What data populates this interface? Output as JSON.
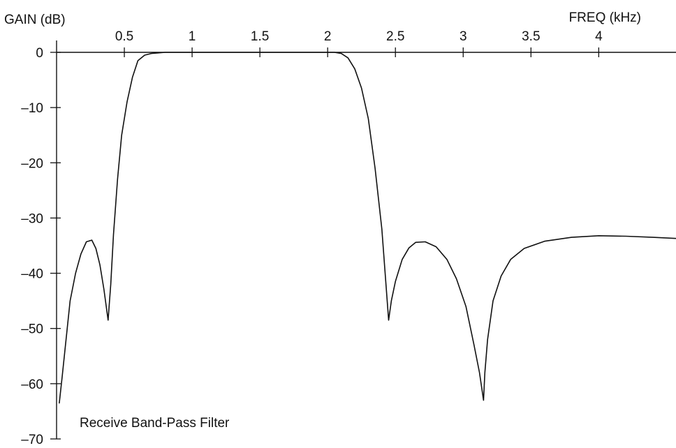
{
  "chart_data": {
    "type": "line",
    "caption": "Receive Band-Pass Filter",
    "xlabel": "FREQ (kHz)",
    "ylabel": "GAIN (dB)",
    "xlim": [
      0,
      4.57
    ],
    "ylim": [
      -70,
      0
    ],
    "x_ticks": [
      {
        "value": 0.5,
        "label": "0.5"
      },
      {
        "value": 1,
        "label": "1"
      },
      {
        "value": 1.5,
        "label": "1.5"
      },
      {
        "value": 2,
        "label": "2"
      },
      {
        "value": 2.5,
        "label": "2.5"
      },
      {
        "value": 3,
        "label": "3"
      },
      {
        "value": 3.5,
        "label": "3.5"
      },
      {
        "value": 4,
        "label": "4"
      }
    ],
    "y_ticks": [
      {
        "value": 0,
        "label": "0"
      },
      {
        "value": -10,
        "label": "–10"
      },
      {
        "value": -20,
        "label": "–20"
      },
      {
        "value": -30,
        "label": "–30"
      },
      {
        "value": -40,
        "label": "–40"
      },
      {
        "value": -50,
        "label": "–50"
      },
      {
        "value": -60,
        "label": "–60"
      },
      {
        "value": -70,
        "label": "–70"
      }
    ],
    "grid": false,
    "series": [
      {
        "color": "#111111",
        "x": [
          0.02,
          0.04,
          0.07,
          0.1,
          0.14,
          0.18,
          0.22,
          0.26,
          0.29,
          0.32,
          0.35,
          0.38,
          0.4,
          0.42,
          0.45,
          0.48,
          0.52,
          0.56,
          0.6,
          0.65,
          0.7,
          0.75,
          0.8,
          0.85,
          0.9,
          1.0,
          1.2,
          1.5,
          1.8,
          2.0,
          2.05,
          2.1,
          2.15,
          2.2,
          2.25,
          2.3,
          2.35,
          2.4,
          2.45,
          2.47,
          2.5,
          2.55,
          2.6,
          2.65,
          2.72,
          2.8,
          2.88,
          2.95,
          3.02,
          3.08,
          3.12,
          3.15,
          3.16,
          3.18,
          3.22,
          3.28,
          3.35,
          3.45,
          3.6,
          3.8,
          4.0,
          4.2,
          4.4,
          4.57
        ],
        "y": [
          -63.5,
          -59,
          -52,
          -45,
          -40,
          -36.5,
          -34.3,
          -34,
          -35.5,
          -38.5,
          -43,
          -48.5,
          -42,
          -33,
          -23,
          -15,
          -9,
          -4.5,
          -1.5,
          -0.5,
          -0.2,
          -0.1,
          0,
          0,
          0,
          0,
          0,
          0,
          0,
          0,
          0,
          -0.2,
          -1,
          -3,
          -6.5,
          -12,
          -21,
          -32,
          -48.5,
          -45,
          -41.5,
          -37.5,
          -35.4,
          -34.4,
          -34.3,
          -35.2,
          -37.5,
          -41,
          -46,
          -53,
          -58,
          -63,
          -58,
          -52,
          -45,
          -40.5,
          -37.5,
          -35.5,
          -34.2,
          -33.5,
          -33.2,
          -33.3,
          -33.5,
          -33.7
        ]
      }
    ]
  }
}
